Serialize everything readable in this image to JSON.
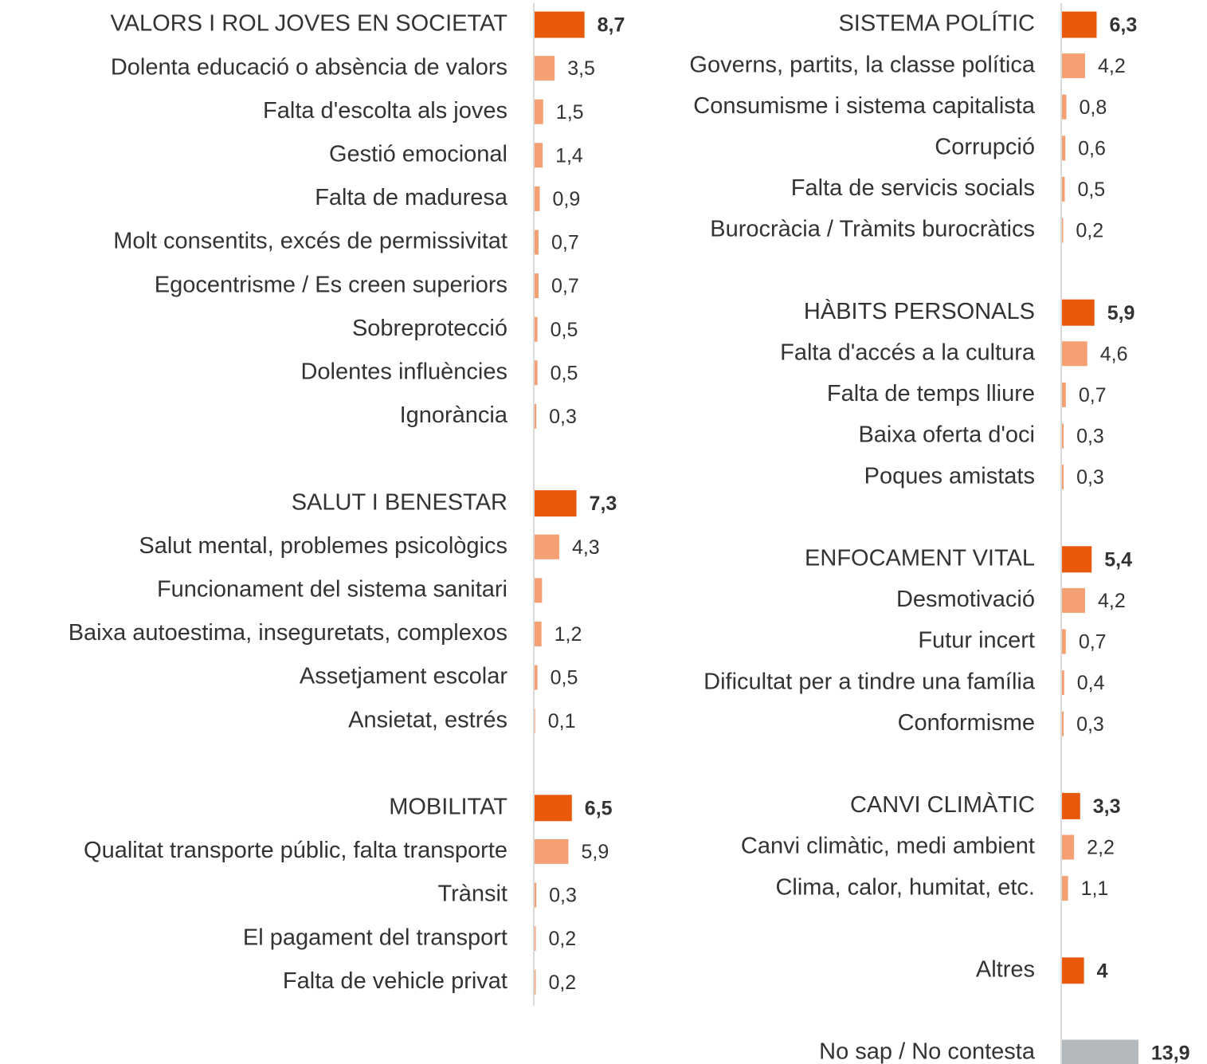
{
  "chart_data": [
    {
      "type": "grouped-bar",
      "header_color": "#e8590c",
      "item_color": "#f5a073",
      "groups": [
        {
          "category": "VALORS I ROL JOVES EN SOCIETAT",
          "value": 8.7,
          "value_label": "8,7",
          "items": {
            "categories": [
              "Dolenta educació o absència de valors",
              "Falta d'escolta als joves",
              "Gestió emocional",
              "Falta de maduresa",
              "Molt consentits, excés de permissivitat",
              "Egocentrisme / Es creen superiors",
              "Sobreprotecció",
              "Dolentes influències",
              "Ignorància"
            ],
            "values": [
              3.5,
              1.5,
              1.4,
              0.9,
              0.7,
              0.7,
              0.5,
              0.5,
              0.3
            ],
            "value_labels": [
              "3,5",
              "1,5",
              "1,4",
              "0,9",
              "0,7",
              "0,7",
              "0,5",
              "0,5",
              "0,3"
            ]
          }
        },
        {
          "category": "SALUT I BENESTAR",
          "value": 7.3,
          "value_label": "7,3",
          "items": {
            "categories": [
              "Salut mental, problemes psicològics",
              "Funcionament del sistema sanitari",
              "Baixa autoestima, inseguretats, complexos",
              "Assetjament escolar",
              "Ansietat, estrés"
            ],
            "values": [
              4.3,
              1.3,
              1.2,
              0.5,
              0.1
            ],
            "value_labels": [
              "4,3",
              null,
              "1,2",
              "0,5",
              "0,1"
            ]
          }
        },
        {
          "category": "MOBILITAT",
          "value": 6.5,
          "value_label": "6,5",
          "items": {
            "categories": [
              "Qualitat transporte públic, falta transporte",
              "Trànsit",
              "El pagament del transport",
              "Falta de vehicle privat"
            ],
            "values": [
              5.9,
              0.3,
              0.2,
              0.2
            ],
            "value_labels": [
              "5,9",
              "0,3",
              "0,2",
              "0,2"
            ]
          }
        }
      ]
    },
    {
      "type": "grouped-bar",
      "header_color": "#e8590c",
      "item_color": "#f5a073",
      "groups": [
        {
          "category": "SISTEMA POLÍTIC",
          "value": 6.3,
          "value_label": "6,3",
          "items": {
            "categories": [
              "Governs, partits, la classe política",
              "Consumisme i sistema capitalista",
              "Corrupció",
              "Falta de servicis socials",
              "Burocràcia / Tràmits burocràtics"
            ],
            "values": [
              4.2,
              0.8,
              0.6,
              0.5,
              0.2
            ],
            "value_labels": [
              "4,2",
              "0,8",
              "0,6",
              "0,5",
              "0,2"
            ]
          }
        },
        {
          "category": "HÀBITS PERSONALS",
          "value": 5.9,
          "value_label": "5,9",
          "items": {
            "categories": [
              "Falta d'accés a la cultura",
              "Falta de temps lliure",
              "Baixa oferta d'oci",
              "Poques amistats"
            ],
            "values": [
              4.6,
              0.7,
              0.3,
              0.3
            ],
            "value_labels": [
              "4,6",
              "0,7",
              "0,3",
              "0,3"
            ]
          }
        },
        {
          "category": "ENFOCAMENT VITAL",
          "value": 5.4,
          "value_label": "5,4",
          "items": {
            "categories": [
              "Desmotivació",
              "Futur incert",
              "Dificultat per a tindre una família",
              "Conformisme"
            ],
            "values": [
              4.2,
              0.7,
              0.4,
              0.3
            ],
            "value_labels": [
              "4,2",
              "0,7",
              "0,4",
              "0,3"
            ]
          }
        },
        {
          "category": "CANVI CLIMÀTIC",
          "value": 3.3,
          "value_label": "3,3",
          "items": {
            "categories": [
              "Canvi climàtic, medi ambient",
              "Clima, calor, humitat, etc."
            ],
            "values": [
              2.2,
              1.1
            ],
            "value_labels": [
              "2,2",
              "1,1"
            ]
          }
        },
        {
          "category": "Altres",
          "value": 4
        },
        {
          "category": "No sap / No contesta",
          "value": 13.9,
          "value_label": "13,9",
          "color": "#b4b9be"
        }
      ]
    }
  ]
}
